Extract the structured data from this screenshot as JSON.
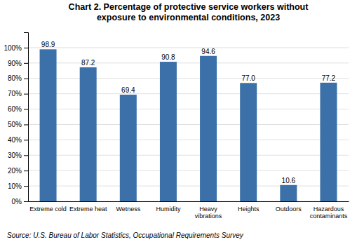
{
  "chart_data": {
    "type": "bar",
    "title": "Chart 2. Percentage of protective service workers without\nexposure to environmental conditions, 2023",
    "categories": [
      "Extreme cold",
      "Extreme heat",
      "Wetness",
      "Humidity",
      "Heavy\nvibrations",
      "Heights",
      "Outdoors",
      "Hazardous\ncontaminants"
    ],
    "values": [
      98.9,
      87.2,
      69.4,
      90.8,
      94.6,
      77.0,
      10.6,
      77.2
    ],
    "value_labels": [
      "98.9",
      "87.2",
      "69.4",
      "90.8",
      "94.6",
      "77.0",
      "10.6",
      "77.2"
    ],
    "data_labels": true,
    "color": "#3B71A8",
    "ylim": [
      0,
      110
    ],
    "yticks": [
      {
        "value": 0,
        "label": "0%"
      },
      {
        "value": 10,
        "label": "10%"
      },
      {
        "value": 20,
        "label": "20%"
      },
      {
        "value": 30,
        "label": "30%"
      },
      {
        "value": 40,
        "label": "40%"
      },
      {
        "value": 50,
        "label": "50%"
      },
      {
        "value": 60,
        "label": "60%"
      },
      {
        "value": 70,
        "label": "70%"
      },
      {
        "value": 80,
        "label": "80%"
      },
      {
        "value": 90,
        "label": "90%"
      },
      {
        "value": 100,
        "label": "100%"
      }
    ],
    "grid": true,
    "annotations": [
      "Source: U.S. Bureau of Labor Statistics, Occupational Requirements Survey"
    ]
  }
}
